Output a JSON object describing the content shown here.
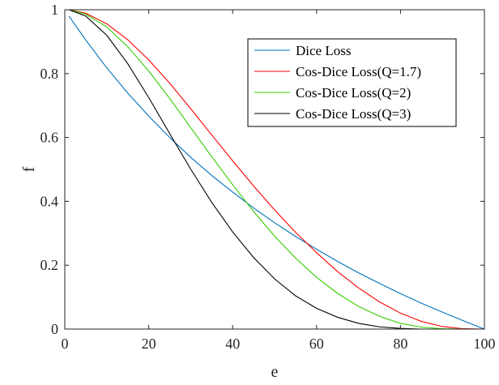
{
  "chart_data": {
    "type": "line",
    "title": "",
    "xlabel": "e",
    "ylabel": "f",
    "xlim": [
      0,
      100
    ],
    "ylim": [
      0,
      1
    ],
    "xticks": [
      0,
      20,
      40,
      60,
      80,
      100
    ],
    "yticks": [
      0,
      0.2,
      0.4,
      0.6,
      0.8,
      1
    ],
    "xtick_labels": [
      "0",
      "20",
      "40",
      "60",
      "80",
      "100"
    ],
    "ytick_labels": [
      "0",
      "0.2",
      "0.4",
      "0.6",
      "0.8",
      "1"
    ],
    "grid": false,
    "legend_position": "top-right",
    "x": [
      1,
      5,
      10,
      15,
      20,
      25,
      30,
      35,
      40,
      45,
      50,
      55,
      60,
      65,
      70,
      75,
      80,
      85,
      90,
      95,
      100
    ],
    "series": [
      {
        "name": "Dice Loss",
        "color": "#0072BD",
        "values": [
          0.98,
          0.905,
          0.818,
          0.739,
          0.667,
          0.6,
          0.538,
          0.481,
          0.429,
          0.379,
          0.333,
          0.29,
          0.25,
          0.212,
          0.176,
          0.143,
          0.111,
          0.081,
          0.053,
          0.026,
          0.0
        ]
      },
      {
        "name": "Cos-Dice Loss(Q=1.7)",
        "color": "#FF0000",
        "values": [
          1.0,
          0.989,
          0.956,
          0.906,
          0.843,
          0.77,
          0.69,
          0.608,
          0.527,
          0.448,
          0.373,
          0.303,
          0.239,
          0.18,
          0.129,
          0.085,
          0.05,
          0.024,
          0.008,
          0.001,
          0.0
        ]
      },
      {
        "name": "Cos-Dice Loss(Q=2)",
        "color": "#33CC00",
        "values": [
          1.0,
          0.986,
          0.946,
          0.884,
          0.808,
          0.722,
          0.631,
          0.54,
          0.452,
          0.368,
          0.291,
          0.222,
          0.162,
          0.112,
          0.071,
          0.04,
          0.018,
          0.006,
          0.001,
          0.0,
          0.0
        ]
      },
      {
        "name": "Cos-Dice Loss(Q=3)",
        "color": "#000000",
        "values": [
          1.0,
          0.98,
          0.92,
          0.831,
          0.725,
          0.612,
          0.501,
          0.397,
          0.304,
          0.224,
          0.157,
          0.104,
          0.065,
          0.037,
          0.018,
          0.007,
          0.002,
          0.0,
          0.0,
          0.0,
          0.0
        ]
      }
    ]
  }
}
